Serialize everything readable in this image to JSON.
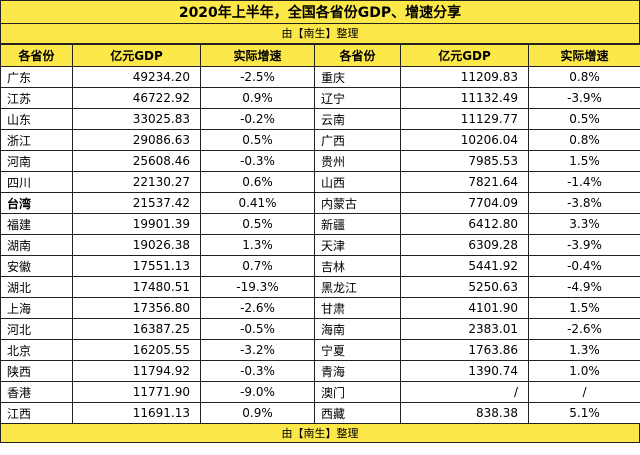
{
  "title": "2020年上半年，全国各省份GDP、增速分享",
  "subtitle": "由【南生】整理",
  "headers": [
    "各省份",
    "亿元GDP",
    "实际增速",
    "各省份",
    "亿元GDP",
    "实际增速"
  ],
  "rows": [
    {
      "left": {
        "name": "广东",
        "gdp": "49234.20",
        "rate": "-2.5%"
      },
      "right": {
        "name": "重庆",
        "gdp": "11209.83",
        "rate": "0.8%"
      }
    },
    {
      "left": {
        "name": "江苏",
        "gdp": "46722.92",
        "rate": "0.9%"
      },
      "right": {
        "name": "辽宁",
        "gdp": "11132.49",
        "rate": "-3.9%"
      }
    },
    {
      "left": {
        "name": "山东",
        "gdp": "33025.83",
        "rate": "-0.2%"
      },
      "right": {
        "name": "云南",
        "gdp": "11129.77",
        "rate": "0.5%"
      }
    },
    {
      "left": {
        "name": "浙江",
        "gdp": "29086.63",
        "rate": "0.5%"
      },
      "right": {
        "name": "广西",
        "gdp": "10206.04",
        "rate": "0.8%"
      }
    },
    {
      "left": {
        "name": "河南",
        "gdp": "25608.46",
        "rate": "-0.3%"
      },
      "right": {
        "name": "贵州",
        "gdp": "7985.53",
        "rate": "1.5%"
      }
    },
    {
      "left": {
        "name": "四川",
        "gdp": "22130.27",
        "rate": "0.6%"
      },
      "right": {
        "name": "山西",
        "gdp": "7821.64",
        "rate": "-1.4%"
      }
    },
    {
      "left": {
        "name": "台湾",
        "gdp": "21537.42",
        "rate": "0.41%"
      },
      "right": {
        "name": "内蒙古",
        "gdp": "7704.09",
        "rate": "-3.8%"
      }
    },
    {
      "left": {
        "name": "福建",
        "gdp": "19901.39",
        "rate": "0.5%"
      },
      "right": {
        "name": "新疆",
        "gdp": "6412.80",
        "rate": "3.3%"
      }
    },
    {
      "left": {
        "name": "湖南",
        "gdp": "19026.38",
        "rate": "1.3%"
      },
      "right": {
        "name": "天津",
        "gdp": "6309.28",
        "rate": "-3.9%"
      }
    },
    {
      "left": {
        "name": "安徽",
        "gdp": "17551.13",
        "rate": "0.7%"
      },
      "right": {
        "name": "吉林",
        "gdp": "5441.92",
        "rate": "-0.4%"
      }
    },
    {
      "left": {
        "name": "湖北",
        "gdp": "17480.51",
        "rate": "-19.3%"
      },
      "right": {
        "name": "黑龙江",
        "gdp": "5250.63",
        "rate": "-4.9%"
      }
    },
    {
      "left": {
        "name": "上海",
        "gdp": "17356.80",
        "rate": "-2.6%"
      },
      "right": {
        "name": "甘肃",
        "gdp": "4101.90",
        "rate": "1.5%"
      }
    },
    {
      "left": {
        "name": "河北",
        "gdp": "16387.25",
        "rate": "-0.5%"
      },
      "right": {
        "name": "海南",
        "gdp": "2383.01",
        "rate": "-2.6%"
      }
    },
    {
      "left": {
        "name": "北京",
        "gdp": "16205.55",
        "rate": "-3.2%"
      },
      "right": {
        "name": "宁夏",
        "gdp": "1763.86",
        "rate": "1.3%"
      }
    },
    {
      "left": {
        "name": "陕西",
        "gdp": "11794.92",
        "rate": "-0.3%"
      },
      "right": {
        "name": "青海",
        "gdp": "1390.74",
        "rate": "1.0%"
      }
    },
    {
      "left": {
        "name": "香港",
        "gdp": "11771.90",
        "rate": "-9.0%"
      },
      "right": {
        "name": "澳门",
        "gdp": "/",
        "rate": "/"
      }
    },
    {
      "left": {
        "name": "江西",
        "gdp": "11691.13",
        "rate": "0.9%"
      },
      "right": {
        "name": "西藏",
        "gdp": "838.38",
        "rate": "5.1%"
      }
    }
  ],
  "bold_names": [
    "台湾"
  ],
  "footer": "由【南生】整理"
}
